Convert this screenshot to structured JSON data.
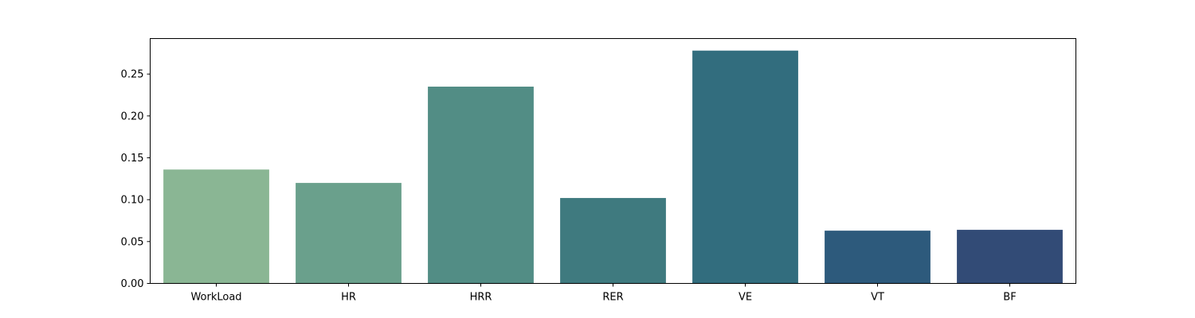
{
  "chart_data": {
    "type": "bar",
    "title": "",
    "xlabel": "",
    "ylabel": "",
    "categories": [
      "WorkLoad",
      "HR",
      "HRR",
      "RER",
      "VE",
      "VT",
      "BF"
    ],
    "values": [
      0.136,
      0.12,
      0.235,
      0.102,
      0.278,
      0.063,
      0.064
    ],
    "colors": [
      "#8ab694",
      "#6aa08c",
      "#528d85",
      "#3f7a7f",
      "#326d7e",
      "#2d5a7c",
      "#324b76"
    ],
    "ylim": [
      0,
      0.2924
    ],
    "yticks": [
      0.0,
      0.05,
      0.1,
      0.15,
      0.2,
      0.25
    ],
    "ytick_labels": [
      "0.00",
      "0.05",
      "0.10",
      "0.15",
      "0.20",
      "0.25"
    ],
    "grid": false,
    "legend": "none"
  }
}
